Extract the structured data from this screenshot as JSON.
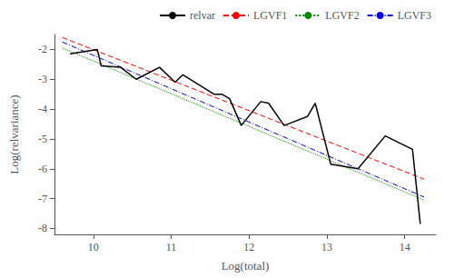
{
  "chart_data": {
    "type": "line",
    "xlabel": "Log(total)",
    "ylabel": "Log(relvariance)",
    "series": [
      {
        "name": "relvar",
        "color": "#000000",
        "line_style": "solid",
        "x": [
          9.7,
          10.05,
          10.1,
          10.35,
          10.55,
          10.85,
          11.05,
          11.15,
          11.55,
          11.65,
          11.75,
          11.9,
          12.15,
          12.25,
          12.45,
          12.55,
          12.75,
          12.85,
          13.05,
          13.4,
          13.75,
          14.1,
          14.2
        ],
        "values": [
          -2.15,
          -2.0,
          -2.55,
          -2.6,
          -3.0,
          -2.6,
          -3.1,
          -2.85,
          -3.5,
          -3.5,
          -3.65,
          -4.55,
          -3.75,
          -3.8,
          -4.55,
          -4.45,
          -4.25,
          -3.8,
          -5.85,
          -6.0,
          -4.9,
          -5.35,
          -7.85
        ]
      },
      {
        "name": "LGVF1",
        "color": "#FF0000",
        "line_style": "dashed",
        "x": [
          9.6,
          14.25
        ],
        "values": [
          -1.6,
          -6.35
        ]
      },
      {
        "name": "LGVF2",
        "color": "#008800",
        "line_style": "dotted",
        "x": [
          9.6,
          14.25
        ],
        "values": [
          -1.95,
          -7.05
        ]
      },
      {
        "name": "LGVF3",
        "color": "#0000EE",
        "line_style": "dashdot",
        "x": [
          9.6,
          14.25
        ],
        "values": [
          -1.75,
          -6.95
        ]
      }
    ],
    "xlim": [
      9.5,
      14.4
    ],
    "ylim": [
      -8.2,
      -1.5
    ],
    "xticks": [
      10,
      11,
      12,
      13,
      14
    ],
    "yticks": [
      -8,
      -7,
      -6,
      -5,
      -4,
      -3,
      -2
    ],
    "grid": false,
    "legend": "upper right"
  }
}
